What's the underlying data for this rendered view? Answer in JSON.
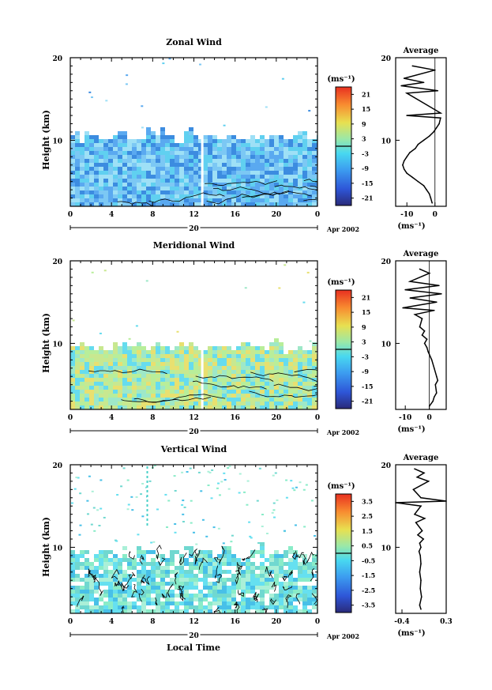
{
  "bottom_xlabel": "Local Time",
  "colorbar_unit": "(ms⁻¹)",
  "chart_data": [
    {
      "type": "heatmap",
      "title": "Zonal Wind",
      "ylabel": "Height (km)",
      "xticks": [
        "0",
        "4",
        "8",
        "12",
        "16",
        "20",
        "0"
      ],
      "ylim": [
        2,
        20
      ],
      "yticks": [
        "10",
        "20"
      ],
      "xlim": [
        0,
        24
      ],
      "date_day": "20",
      "date_label": "Apr 2002",
      "colorbar": {
        "ticks": [
          "21",
          "15",
          "9",
          "3",
          "-3",
          "-9",
          "-15",
          "-21"
        ],
        "range": [
          -24,
          24
        ],
        "zero_line": 0
      },
      "data_top_km": 10.6,
      "field_colors": [
        "#5aa9f0",
        "#7cc8f4",
        "#60d0f0",
        "#9ee0f6",
        "#3c8ce0"
      ],
      "contour_top_km": 5.2,
      "gap_hour": 12.7,
      "profile": {
        "title": "Average",
        "xlim": [
          -14,
          4
        ],
        "xticks": [
          "-10",
          "0"
        ],
        "ylim": [
          2,
          20
        ],
        "yticks": [
          "10",
          "20"
        ],
        "xlabel": "(ms⁻¹)",
        "zero_line": true,
        "x": [
          -1,
          -1.5,
          -2,
          -3,
          -4,
          -6,
          -8,
          -10,
          -11,
          -11.5,
          -11,
          -10,
          -9,
          -7,
          -6,
          -4,
          -2,
          -0.5,
          0.5,
          1.5,
          2,
          -10,
          2,
          -10,
          1,
          -12,
          -4,
          -11,
          0,
          -8
        ],
        "y": [
          2.4,
          3,
          3.5,
          4,
          4.5,
          5,
          5.5,
          6,
          6.5,
          7,
          7.5,
          8,
          8.5,
          9,
          9.5,
          10,
          10.5,
          11,
          11.5,
          12,
          12.7,
          13,
          13.3,
          15.7,
          16,
          16.6,
          17,
          17.5,
          18.5,
          19
        ]
      }
    },
    {
      "type": "heatmap",
      "title": "Meridional Wind",
      "ylabel": "Height (km)",
      "xticks": [
        "0",
        "4",
        "8",
        "12",
        "16",
        "20",
        "0"
      ],
      "ylim": [
        2,
        20
      ],
      "yticks": [
        "10",
        "20"
      ],
      "xlim": [
        0,
        24
      ],
      "date_day": "20",
      "date_label": "Apr 2002",
      "colorbar": {
        "ticks": [
          "21",
          "15",
          "9",
          "3",
          "-3",
          "-9",
          "-15",
          "-21"
        ],
        "range": [
          -24,
          24
        ],
        "zero_line": 0
      },
      "data_top_km": 9.5,
      "field_colors": [
        "#9ee8c8",
        "#c8e890",
        "#e8e070",
        "#66dcee",
        "#b8ee9a"
      ],
      "contour_top_km": 7.3,
      "gap_hour": 12.7,
      "profile": {
        "title": "Average",
        "xlim": [
          -14,
          7
        ],
        "xticks": [
          "-10",
          "0"
        ],
        "ylim": [
          2,
          20
        ],
        "yticks": [
          "10",
          "20"
        ],
        "xlabel": "(ms⁻¹)",
        "zero_line": true,
        "x": [
          0,
          1.5,
          2,
          3,
          2.5,
          3.5,
          3,
          2,
          1,
          -0.5,
          -1,
          -2,
          -1,
          -3,
          -2,
          -4,
          -3,
          -6,
          2,
          -11,
          3,
          -8,
          5,
          -10,
          4,
          -8,
          0,
          -4
        ],
        "y": [
          2.4,
          3,
          3.5,
          4,
          5,
          5.5,
          6,
          7,
          8,
          9,
          9.5,
          10,
          10.5,
          11,
          11.5,
          12,
          13,
          13.5,
          14,
          14.3,
          15,
          15.5,
          16,
          16.5,
          17,
          17.5,
          18.5,
          19
        ]
      }
    },
    {
      "type": "heatmap",
      "title": "Vertical Wind",
      "ylabel": "Height (km)",
      "xticks": [
        "0",
        "4",
        "8",
        "12",
        "16",
        "20",
        "0"
      ],
      "ylim": [
        2,
        20
      ],
      "yticks": [
        "10",
        "20"
      ],
      "xlim": [
        0,
        24
      ],
      "date_day": "20",
      "date_label": "Apr 2002",
      "colorbar": {
        "ticks": [
          "3.5",
          "2.5",
          "1.5",
          "0.5",
          "-0.5",
          "-1.5",
          "-2.5",
          "-3.5"
        ],
        "range": [
          -4,
          4
        ],
        "zero_line": 0
      },
      "data_top_km": 9.5,
      "field_colors": [
        "#66e0f0",
        "#8aecc8",
        "#48c0e8",
        "#aaf0d8",
        "#70d8d0"
      ],
      "contour_top_km": 9.5,
      "gap_hour": 7.4,
      "profile": {
        "title": "Average",
        "xlim": [
          -0.5,
          0.3
        ],
        "xticks": [
          "-0.4",
          "0.3"
        ],
        "ylim": [
          2,
          20
        ],
        "yticks": [
          "10",
          "20"
        ],
        "xlabel": "(ms⁻¹)",
        "zero_line": false,
        "x": [
          -0.1,
          -0.12,
          -0.09,
          -0.11,
          -0.1,
          -0.12,
          -0.1,
          -0.11,
          -0.13,
          -0.1,
          -0.12,
          -0.06,
          -0.15,
          -0.08,
          -0.18,
          -0.04,
          -0.2,
          -0.1,
          -0.5,
          0.3,
          -0.1,
          -0.22,
          0.02,
          -0.16,
          -0.05,
          -0.2
        ],
        "y": [
          2.5,
          3,
          4,
          5,
          6,
          7,
          8,
          9,
          9.5,
          10,
          10.5,
          11,
          11.5,
          12,
          13,
          13.5,
          14,
          15,
          15.4,
          15.6,
          16,
          17,
          18,
          18.5,
          19,
          19.5
        ]
      }
    }
  ]
}
